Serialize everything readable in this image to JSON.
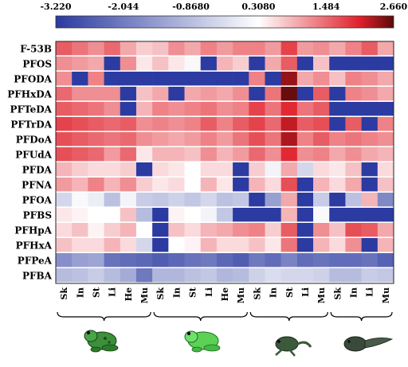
{
  "chart_data": {
    "type": "heatmap",
    "color_scale": {
      "min": -3.22,
      "max": 2.66,
      "tick_labels": [
        "-3.220",
        "-2.044",
        "-0.8680",
        "0.3080",
        "1.484",
        "2.660"
      ],
      "colors": [
        "#2b3aa0",
        "#ffffff",
        "#e0202a",
        "#5a0a0a"
      ]
    },
    "rows": [
      "F-53B",
      "PFOS",
      "PFODA",
      "PFHxDA",
      "PFTeDA",
      "PFTrDA",
      "PFDoA",
      "PFUdA",
      "PFDA",
      "PFNA",
      "PFOA",
      "PFBS",
      "PFHpA",
      "PFHxA",
      "PFPeA",
      "PFBA"
    ],
    "columns": [
      "Sk",
      "In",
      "St",
      "Li",
      "He",
      "Mu",
      "Sk",
      "In",
      "St",
      "Li",
      "He",
      "Mu",
      "Sk",
      "In",
      "St",
      "Li",
      "Mu",
      "Sk",
      "In",
      "Li",
      "Mu"
    ],
    "groups": [
      {
        "icon": "adult-frog-icon",
        "columns": 6
      },
      {
        "icon": "green-frog-icon",
        "columns": 6
      },
      {
        "icon": "froglet-icon",
        "columns": 5
      },
      {
        "icon": "tadpole-icon",
        "columns": 4
      }
    ],
    "values": [
      [
        1.6,
        1.4,
        1.2,
        1.5,
        1.0,
        0.7,
        0.8,
        1.2,
        1.0,
        1.3,
        1.1,
        1.3,
        1.3,
        1.1,
        1.8,
        1.1,
        1.2,
        1.0,
        1.3,
        1.6,
        1.0
      ],
      [
        1.2,
        1.1,
        1.0,
        -3.2,
        1.2,
        0.5,
        0.8,
        0.5,
        0.2,
        -3.2,
        0.9,
        0.7,
        -3.2,
        1.0,
        1.6,
        -3.2,
        0.8,
        -3.2,
        -3.2,
        -3.2,
        -3.2
      ],
      [
        1.2,
        -3.2,
        1.3,
        -3.2,
        -3.2,
        -3.2,
        -3.2,
        -3.2,
        -3.2,
        -3.2,
        -3.2,
        -3.2,
        1.3,
        -3.2,
        2.4,
        1.0,
        1.2,
        0.8,
        1.3,
        1.2,
        1.0
      ],
      [
        1.5,
        1.2,
        1.2,
        1.2,
        -3.2,
        0.8,
        1.0,
        -3.2,
        1.0,
        1.1,
        1.0,
        1.2,
        -3.2,
        1.4,
        2.6,
        -3.2,
        1.6,
        -3.2,
        1.3,
        1.2,
        1.0
      ],
      [
        1.6,
        1.5,
        1.4,
        1.2,
        -3.2,
        0.9,
        1.3,
        1.2,
        1.3,
        1.4,
        1.2,
        1.3,
        1.8,
        1.4,
        2.0,
        1.4,
        1.6,
        -3.2,
        -3.2,
        -3.2,
        -3.2
      ],
      [
        1.8,
        1.7,
        1.6,
        1.5,
        1.6,
        1.2,
        1.3,
        1.2,
        1.3,
        1.6,
        1.3,
        1.6,
        1.8,
        1.5,
        2.2,
        1.6,
        1.7,
        -3.2,
        1.6,
        -3.2,
        1.3
      ],
      [
        1.7,
        1.6,
        1.5,
        1.4,
        1.5,
        1.2,
        1.1,
        1.0,
        1.1,
        1.3,
        1.1,
        1.4,
        1.7,
        1.4,
        2.3,
        1.3,
        1.6,
        1.3,
        1.4,
        1.3,
        1.2
      ],
      [
        1.7,
        1.6,
        1.5,
        1.1,
        1.5,
        0.5,
        0.9,
        0.9,
        0.8,
        1.2,
        0.9,
        1.1,
        1.5,
        1.2,
        2.0,
        1.2,
        1.3,
        1.0,
        1.2,
        1.0,
        0.9
      ],
      [
        0.9,
        0.7,
        0.6,
        0.6,
        0.7,
        -3.2,
        0.6,
        0.5,
        0.3,
        0.6,
        0.6,
        -3.2,
        0.7,
        0.1,
        1.0,
        -0.4,
        0.6,
        0.5,
        0.8,
        -3.2,
        0.6
      ],
      [
        1.1,
        0.9,
        1.3,
        0.9,
        1.2,
        0.7,
        0.5,
        0.6,
        0.3,
        0.9,
        0.5,
        -3.2,
        0.9,
        0.6,
        1.7,
        -3.2,
        0.9,
        0.6,
        1.0,
        -3.2,
        0.8
      ],
      [
        -0.4,
        0.2,
        0.0,
        -0.8,
        0.1,
        -0.6,
        -0.7,
        -0.5,
        -0.7,
        -0.4,
        -0.8,
        -0.7,
        -3.2,
        -1.4,
        1.0,
        -3.2,
        -0.6,
        -3.2,
        -0.8,
        0.9,
        -1.8
      ],
      [
        0.5,
        0.4,
        0.3,
        0.3,
        0.8,
        -0.9,
        -3.2,
        0.4,
        0.3,
        0.1,
        -0.7,
        -3.2,
        -3.2,
        -3.2,
        0.9,
        -3.2,
        0.2,
        -3.2,
        -3.2,
        -3.2,
        -3.2
      ],
      [
        0.6,
        0.8,
        0.4,
        0.7,
        0.9,
        0.3,
        -3.2,
        0.8,
        0.6,
        0.9,
        1.0,
        1.2,
        1.3,
        0.7,
        1.6,
        -3.2,
        1.2,
        0.8,
        1.7,
        1.6,
        1.0
      ],
      [
        0.8,
        0.6,
        0.6,
        0.9,
        0.6,
        -0.4,
        -3.2,
        0.3,
        0.4,
        0.9,
        0.6,
        0.6,
        0.8,
        0.5,
        1.4,
        -3.2,
        0.9,
        0.6,
        1.2,
        -3.2,
        0.9
      ],
      [
        -1.7,
        -1.4,
        -1.3,
        -2.2,
        -2.3,
        -2.4,
        -2.6,
        -2.4,
        -2.2,
        -2.1,
        -2.4,
        -2.6,
        -2.1,
        -2.3,
        -1.9,
        -2.3,
        -2.2,
        -2.3,
        -2.3,
        -2.2,
        -2.5
      ],
      [
        -0.9,
        -0.8,
        -0.6,
        -0.9,
        -1.2,
        -2.1,
        -1.0,
        -1.0,
        -0.8,
        -0.7,
        -1.0,
        -0.9,
        -0.5,
        -0.3,
        -0.4,
        -0.4,
        -0.5,
        -0.9,
        -0.9,
        -0.6,
        -0.7
      ]
    ]
  }
}
